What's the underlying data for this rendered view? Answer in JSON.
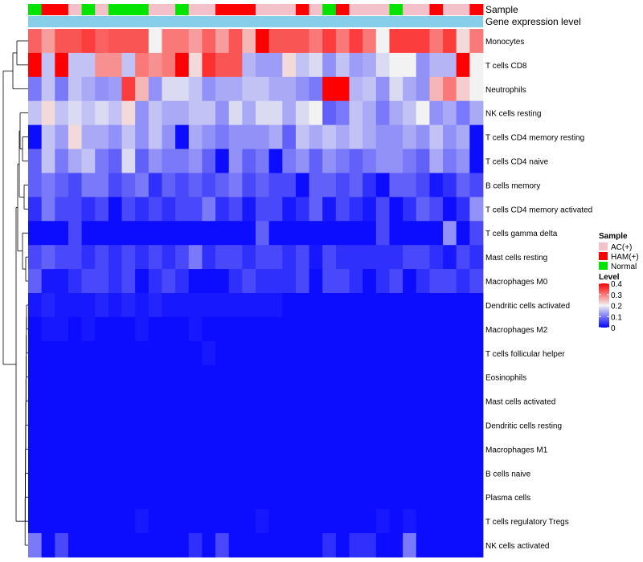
{
  "chart_data": {
    "type": "heatmap",
    "title": "",
    "annotation_labels": [
      "Sample",
      "Gene expression level"
    ],
    "rows": [
      "Monocytes",
      "T cells CD8",
      "Neutrophils",
      "NK cells resting",
      "T cells CD4 memory resting",
      "T cells CD4 naive",
      "B cells memory",
      "T cells CD4 memory activated",
      "T cells gamma delta",
      "Mast cells resting",
      "Macrophages M0",
      "Dendritic cells activated",
      "Macrophages M2",
      "T cells follicular helper",
      "Eosinophils",
      "Mast cells activated",
      "Dendritic cells resting",
      "Macrophages M1",
      "B cells naive",
      "Plasma cells",
      "T cells regulatory  Tregs",
      "NK cells activated"
    ],
    "samples": [
      "N",
      "H",
      "H",
      "A",
      "N",
      "A",
      "N",
      "N",
      "N",
      "A",
      "A",
      "N",
      "A",
      "A",
      "H",
      "H",
      "H",
      "A",
      "A",
      "A",
      "H",
      "A",
      "N",
      "H",
      "A",
      "A",
      "A",
      "N",
      "A",
      "A",
      "H",
      "A",
      "A",
      "H"
    ],
    "values": [
      [
        0.32,
        0.27,
        0.33,
        0.33,
        0.35,
        0.32,
        0.33,
        0.33,
        0.33,
        0.2,
        0.3,
        0.3,
        0.27,
        0.32,
        0.27,
        0.33,
        0.25,
        0.4,
        0.33,
        0.33,
        0.33,
        0.3,
        0.35,
        0.3,
        0.35,
        0.3,
        0.2,
        0.35,
        0.35,
        0.35,
        0.3,
        0.35,
        0.22,
        0.3
      ],
      [
        0.4,
        0.16,
        0.4,
        0.16,
        0.16,
        0.28,
        0.28,
        0.16,
        0.3,
        0.28,
        0.3,
        0.4,
        0.22,
        0.36,
        0.33,
        0.33,
        0.15,
        0.13,
        0.13,
        0.22,
        0.16,
        0.18,
        0.12,
        0.16,
        0.13,
        0.14,
        0.18,
        0.2,
        0.2,
        0.12,
        0.15,
        0.15,
        0.4,
        0.2
      ],
      [
        0.1,
        0.16,
        0.1,
        0.16,
        0.14,
        0.12,
        0.13,
        0.35,
        0.25,
        0.12,
        0.18,
        0.18,
        0.16,
        0.12,
        0.14,
        0.14,
        0.16,
        0.16,
        0.14,
        0.14,
        0.12,
        0.1,
        0.4,
        0.4,
        0.15,
        0.16,
        0.12,
        0.18,
        0.14,
        0.12,
        0.25,
        0.3,
        0.23,
        0.2
      ],
      [
        0.16,
        0.22,
        0.16,
        0.18,
        0.16,
        0.18,
        0.16,
        0.22,
        0.12,
        0.16,
        0.14,
        0.14,
        0.16,
        0.16,
        0.12,
        0.18,
        0.14,
        0.18,
        0.18,
        0.14,
        0.18,
        0.2,
        0.08,
        0.1,
        0.16,
        0.14,
        0.1,
        0.14,
        0.16,
        0.2,
        0.12,
        0.14,
        0.1,
        0.14
      ],
      [
        0.01,
        0.16,
        0.13,
        0.22,
        0.14,
        0.14,
        0.12,
        0.16,
        0.12,
        0.16,
        0.12,
        0.01,
        0.14,
        0.12,
        0.1,
        0.12,
        0.12,
        0.12,
        0.14,
        0.08,
        0.16,
        0.14,
        0.16,
        0.14,
        0.16,
        0.14,
        0.12,
        0.12,
        0.14,
        0.12,
        0.16,
        0.12,
        0.14,
        0.01
      ],
      [
        0.08,
        0.16,
        0.1,
        0.14,
        0.16,
        0.1,
        0.08,
        0.18,
        0.08,
        0.12,
        0.1,
        0.1,
        0.12,
        0.08,
        0.01,
        0.12,
        0.08,
        0.1,
        0.01,
        0.1,
        0.12,
        0.08,
        0.12,
        0.1,
        0.08,
        0.1,
        0.12,
        0.12,
        0.1,
        0.08,
        0.14,
        0.1,
        0.12,
        0.01
      ],
      [
        0.08,
        0.1,
        0.08,
        0.06,
        0.1,
        0.1,
        0.06,
        0.08,
        0.1,
        0.04,
        0.08,
        0.06,
        0.08,
        0.06,
        0.08,
        0.1,
        0.06,
        0.08,
        0.06,
        0.06,
        0.01,
        0.08,
        0.08,
        0.06,
        0.08,
        0.04,
        0.01,
        0.08,
        0.08,
        0.06,
        0.02,
        0.04,
        0.08,
        0.06
      ],
      [
        0.04,
        0.1,
        0.06,
        0.06,
        0.04,
        0.06,
        0.01,
        0.06,
        0.04,
        0.06,
        0.04,
        0.06,
        0.06,
        0.1,
        0.04,
        0.06,
        0.02,
        0.06,
        0.06,
        0.02,
        0.04,
        0.08,
        0.02,
        0.06,
        0.04,
        0.02,
        0.06,
        0.01,
        0.04,
        0.08,
        0.06,
        0.01,
        0.04,
        0.12
      ],
      [
        0.01,
        0.01,
        0.01,
        0.06,
        0.01,
        0.01,
        0.01,
        0.01,
        0.01,
        0.01,
        0.01,
        0.01,
        0.01,
        0.01,
        0.01,
        0.01,
        0.01,
        0.08,
        0.01,
        0.01,
        0.01,
        0.01,
        0.01,
        0.01,
        0.01,
        0.01,
        0.06,
        0.01,
        0.01,
        0.01,
        0.01,
        0.12,
        0.01,
        0.06
      ],
      [
        0.06,
        0.08,
        0.06,
        0.06,
        0.04,
        0.06,
        0.04,
        0.06,
        0.04,
        0.06,
        0.04,
        0.06,
        0.1,
        0.04,
        0.06,
        0.06,
        0.04,
        0.06,
        0.06,
        0.04,
        0.06,
        0.02,
        0.06,
        0.04,
        0.04,
        0.04,
        0.04,
        0.04,
        0.06,
        0.06,
        0.04,
        0.02,
        0.06,
        0.04
      ],
      [
        0.08,
        0.02,
        0.02,
        0.04,
        0.06,
        0.06,
        0.04,
        0.06,
        0.01,
        0.04,
        0.06,
        0.04,
        0.01,
        0.01,
        0.01,
        0.04,
        0.06,
        0.04,
        0.04,
        0.04,
        0.06,
        0.01,
        0.06,
        0.06,
        0.04,
        0.01,
        0.04,
        0.06,
        0.01,
        0.04,
        0.06,
        0.06,
        0.04,
        0.06
      ],
      [
        0.02,
        0.03,
        0.02,
        0.02,
        0.02,
        0.03,
        0.02,
        0.03,
        0.02,
        0.03,
        0.02,
        0.02,
        0.02,
        0.02,
        0.02,
        0.02,
        0.02,
        0.02,
        0.02,
        0.01,
        0.01,
        0.01,
        0.01,
        0.01,
        0.01,
        0.01,
        0.01,
        0.01,
        0.01,
        0.01,
        0.01,
        0.01,
        0.01,
        0.01
      ],
      [
        0.01,
        0.02,
        0.02,
        0.01,
        0.02,
        0.01,
        0.01,
        0.01,
        0.02,
        0.01,
        0.01,
        0.01,
        0.02,
        0.01,
        0.01,
        0.01,
        0.01,
        0.01,
        0.01,
        0.01,
        0.01,
        0.01,
        0.01,
        0.01,
        0.01,
        0.01,
        0.01,
        0.01,
        0.01,
        0.01,
        0.01,
        0.01,
        0.01,
        0.01
      ],
      [
        0.01,
        0.01,
        0.01,
        0.01,
        0.01,
        0.01,
        0.01,
        0.01,
        0.01,
        0.01,
        0.01,
        0.01,
        0.01,
        0.02,
        0.01,
        0.01,
        0.01,
        0.01,
        0.01,
        0.01,
        0.01,
        0.01,
        0.01,
        0.01,
        0.01,
        0.01,
        0.01,
        0.01,
        0.01,
        0.01,
        0.01,
        0.01,
        0.01,
        0.01
      ],
      [
        0.01,
        0.01,
        0.01,
        0.01,
        0.01,
        0.01,
        0.01,
        0.01,
        0.01,
        0.01,
        0.01,
        0.01,
        0.01,
        0.01,
        0.01,
        0.01,
        0.01,
        0.01,
        0.01,
        0.01,
        0.01,
        0.01,
        0.01,
        0.01,
        0.01,
        0.01,
        0.01,
        0.01,
        0.01,
        0.01,
        0.01,
        0.01,
        0.01,
        0.01
      ],
      [
        0.01,
        0.01,
        0.01,
        0.01,
        0.01,
        0.01,
        0.01,
        0.01,
        0.01,
        0.01,
        0.01,
        0.01,
        0.01,
        0.01,
        0.01,
        0.01,
        0.01,
        0.01,
        0.01,
        0.01,
        0.01,
        0.01,
        0.01,
        0.01,
        0.01,
        0.01,
        0.01,
        0.01,
        0.01,
        0.01,
        0.01,
        0.01,
        0.01,
        0.01
      ],
      [
        0.01,
        0.01,
        0.01,
        0.01,
        0.01,
        0.01,
        0.01,
        0.01,
        0.01,
        0.01,
        0.01,
        0.01,
        0.01,
        0.01,
        0.01,
        0.01,
        0.01,
        0.01,
        0.01,
        0.01,
        0.01,
        0.01,
        0.01,
        0.01,
        0.01,
        0.01,
        0.01,
        0.01,
        0.01,
        0.01,
        0.01,
        0.01,
        0.01,
        0.01
      ],
      [
        0.01,
        0.01,
        0.01,
        0.01,
        0.01,
        0.01,
        0.01,
        0.01,
        0.01,
        0.01,
        0.01,
        0.01,
        0.01,
        0.01,
        0.01,
        0.01,
        0.01,
        0.01,
        0.01,
        0.01,
        0.01,
        0.01,
        0.01,
        0.01,
        0.01,
        0.01,
        0.01,
        0.01,
        0.01,
        0.01,
        0.01,
        0.01,
        0.01,
        0.01
      ],
      [
        0.01,
        0.01,
        0.01,
        0.01,
        0.01,
        0.01,
        0.01,
        0.01,
        0.01,
        0.01,
        0.01,
        0.01,
        0.01,
        0.01,
        0.01,
        0.01,
        0.01,
        0.01,
        0.01,
        0.01,
        0.01,
        0.01,
        0.01,
        0.01,
        0.01,
        0.01,
        0.01,
        0.01,
        0.01,
        0.01,
        0.01,
        0.01,
        0.01,
        0.01
      ],
      [
        0.01,
        0.01,
        0.01,
        0.01,
        0.01,
        0.01,
        0.01,
        0.01,
        0.01,
        0.01,
        0.01,
        0.01,
        0.01,
        0.01,
        0.01,
        0.01,
        0.01,
        0.01,
        0.01,
        0.01,
        0.01,
        0.01,
        0.01,
        0.01,
        0.01,
        0.01,
        0.01,
        0.01,
        0.01,
        0.01,
        0.01,
        0.01,
        0.01,
        0.01
      ],
      [
        0.01,
        0.01,
        0.01,
        0.01,
        0.01,
        0.01,
        0.01,
        0.01,
        0.02,
        0.01,
        0.01,
        0.01,
        0.01,
        0.01,
        0.01,
        0.01,
        0.01,
        0.02,
        0.01,
        0.01,
        0.01,
        0.01,
        0.01,
        0.01,
        0.01,
        0.01,
        0.02,
        0.01,
        0.02,
        0.01,
        0.01,
        0.01,
        0.01,
        0.01
      ],
      [
        0.1,
        0.01,
        0.06,
        0.01,
        0.01,
        0.01,
        0.01,
        0.01,
        0.01,
        0.01,
        0.01,
        0.01,
        0.04,
        0.01,
        0.06,
        0.01,
        0.01,
        0.01,
        0.01,
        0.01,
        0.01,
        0.01,
        0.04,
        0.01,
        0.04,
        0.04,
        0.01,
        0.01,
        0.1,
        0.01,
        0.01,
        0.01,
        0.01,
        0.01
      ]
    ],
    "color_scale": {
      "min": 0,
      "max": 0.4,
      "low": "#0000ff",
      "mid": "#f2f2f2",
      "high": "#ff0000",
      "mid_value": 0.2
    },
    "sample_groups": [
      {
        "key": "A",
        "label": "AC(+)",
        "color": "#f4c1cb"
      },
      {
        "key": "H",
        "label": "HAM(+)",
        "color": "#ff0000"
      },
      {
        "key": "N",
        "label": "Normal",
        "color": "#00e400"
      }
    ],
    "gene_expression_color": "#87ceeb",
    "legend": {
      "sample_title": "Sample",
      "level_title": "Level",
      "level_ticks": [
        "0.4",
        "0.3",
        "0.2",
        "0.1",
        "0"
      ],
      "level_tick_values": [
        0.4,
        0.3,
        0.2,
        0.1,
        0
      ],
      "placement": "right"
    },
    "dendrogram": true
  }
}
